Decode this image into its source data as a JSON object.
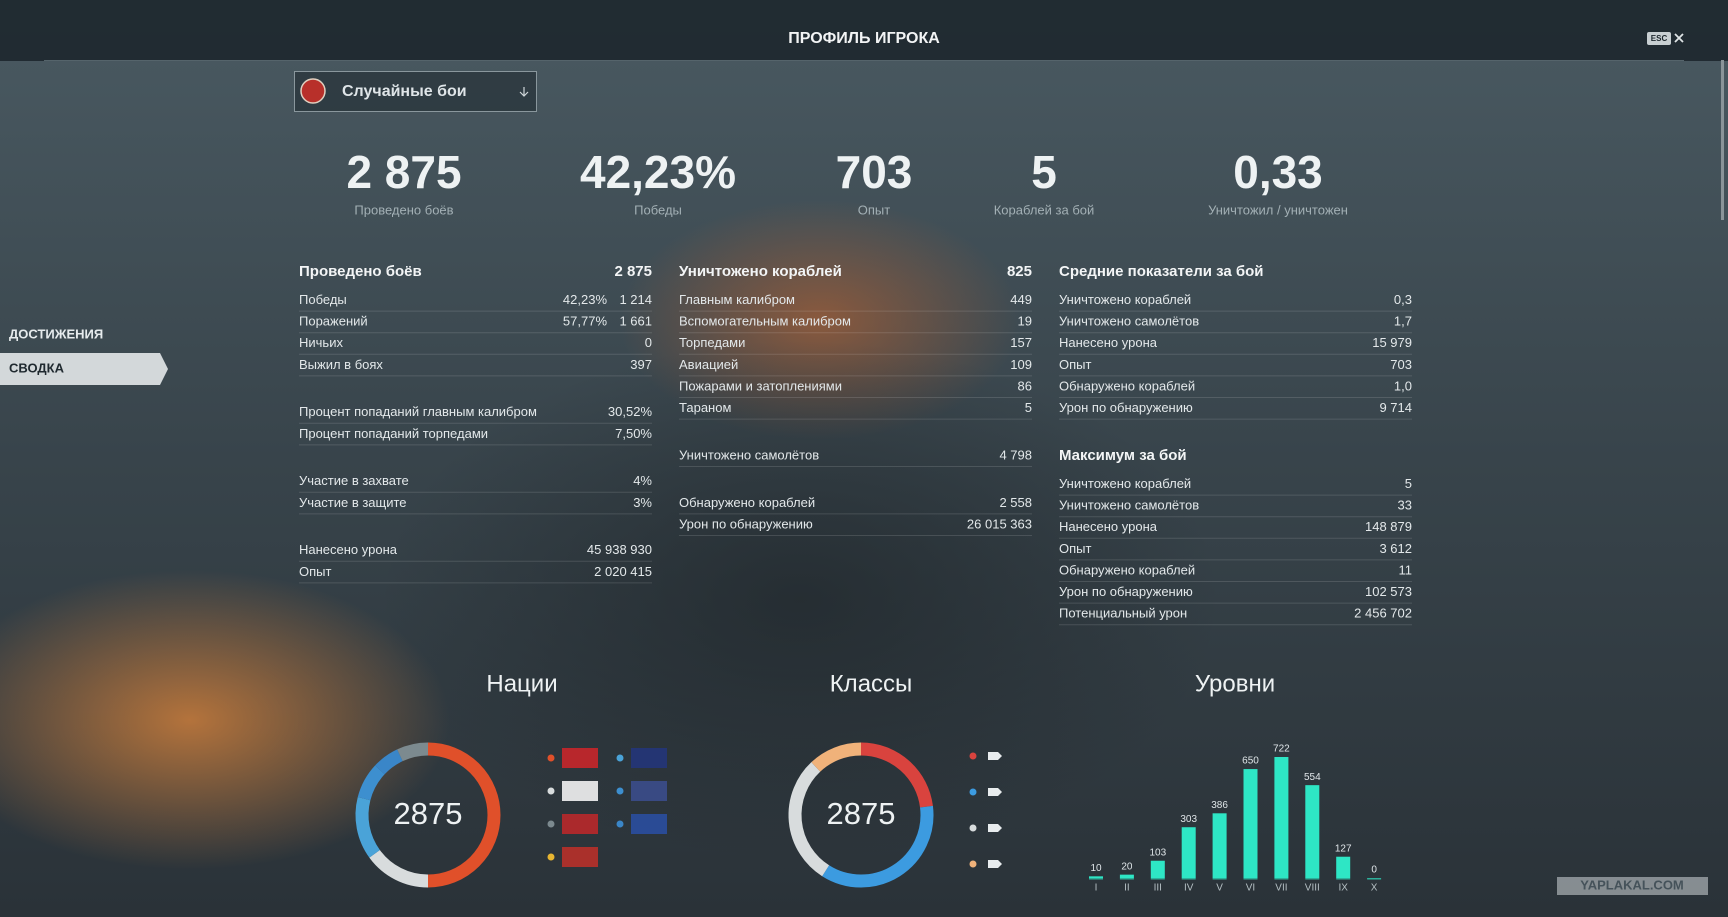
{
  "header": {
    "title": "ПРОФИЛЬ ИГРОКА",
    "esc": "ESC"
  },
  "mode_select": {
    "label": "Случайные бои"
  },
  "sidebar": [
    "ДОСТИЖЕНИЯ",
    "СВОДКА"
  ],
  "summary": [
    {
      "value": "2 875",
      "label": "Проведено боёв"
    },
    {
      "value": "42,23%",
      "label": "Победы"
    },
    {
      "value": "703",
      "label": "Опыт"
    },
    {
      "value": "5",
      "label": "Кораблей за бой"
    },
    {
      "value": "0,33",
      "label": "Уничтожил / уничтожен"
    }
  ],
  "columns": [
    {
      "sections": [
        {
          "title": "Проведено боёв",
          "total": "2 875",
          "groups": [
            [
              {
                "label": "Победы",
                "pct": "42,23%",
                "value": "1 214"
              },
              {
                "label": "Поражений",
                "pct": "57,77%",
                "value": "1 661"
              },
              {
                "label": "Ничьих",
                "value": "0"
              },
              {
                "label": "Выжил в боях",
                "value": "397"
              }
            ],
            [
              {
                "label": "Процент попаданий главным калибром",
                "value": "30,52%"
              },
              {
                "label": "Процент попаданий торпедами",
                "value": "7,50%"
              }
            ],
            [
              {
                "label": "Участие в захвате",
                "value": "4%"
              },
              {
                "label": "Участие в защите",
                "value": "3%"
              }
            ],
            [
              {
                "label": "Нанесено урона",
                "value": "45 938 930"
              },
              {
                "label": "Опыт",
                "value": "2 020 415"
              }
            ]
          ]
        }
      ]
    },
    {
      "sections": [
        {
          "title": "Уничтожено кораблей",
          "total": "825",
          "groups": [
            [
              {
                "label": "Главным калибром",
                "value": "449"
              },
              {
                "label": "Вспомогательным калибром",
                "value": "19"
              },
              {
                "label": "Торпедами",
                "value": "157"
              },
              {
                "label": "Авиацией",
                "value": "109"
              },
              {
                "label": "Пожарами и затоплениями",
                "value": "86"
              },
              {
                "label": "Тараном",
                "value": "5"
              }
            ],
            [
              {
                "label": "Уничтожено самолётов",
                "value": "4 798"
              }
            ],
            [
              {
                "label": "Обнаружено кораблей",
                "value": "2 558"
              },
              {
                "label": "Урон по обнаружению",
                "value": "26 015 363"
              }
            ]
          ]
        }
      ]
    },
    {
      "sections": [
        {
          "title": "Средние показатели за бой",
          "groups": [
            [
              {
                "label": "Уничтожено кораблей",
                "value": "0,3"
              },
              {
                "label": "Уничтожено самолётов",
                "value": "1,7"
              },
              {
                "label": "Нанесено урона",
                "value": "15 979"
              },
              {
                "label": "Опыт",
                "value": "703"
              },
              {
                "label": "Обнаружено кораблей",
                "value": "1,0"
              },
              {
                "label": "Урон по обнаружению",
                "value": "9 714"
              }
            ]
          ]
        },
        {
          "title": "Максимум за бой",
          "groups": [
            [
              {
                "label": "Уничтожено кораблей",
                "value": "5"
              },
              {
                "label": "Уничтожено самолётов",
                "value": "33"
              },
              {
                "label": "Нанесено урона",
                "value": "148 879"
              },
              {
                "label": "Опыт",
                "value": "3 612"
              },
              {
                "label": "Обнаружено кораблей",
                "value": "11"
              },
              {
                "label": "Урон по обнаружению",
                "value": "102 573"
              },
              {
                "label": "Потенциальный урон",
                "value": "2 456 702"
              }
            ]
          ]
        }
      ]
    }
  ],
  "chart_data": [
    {
      "type": "donut",
      "title": "Нации",
      "total": 2875,
      "values": [
        50,
        15,
        14,
        8,
        6,
        7,
        0
      ],
      "colors": [
        "#e0502a",
        "#d8dcdd",
        "#4aa3d8",
        "#3d8fcf",
        "#3a86c8",
        "#7c8a8f",
        "#e7b531"
      ]
    },
    {
      "type": "donut",
      "title": "Классы",
      "total": 2875,
      "values": [
        23,
        36,
        29,
        12
      ],
      "colors": [
        "#d9433e",
        "#3c9be0",
        "#d8dcdd",
        "#f0b27a"
      ]
    },
    {
      "type": "bar",
      "title": "Уровни",
      "categories": [
        "I",
        "II",
        "III",
        "IV",
        "V",
        "VI",
        "VII",
        "VIII",
        "IX",
        "X"
      ],
      "values": [
        10,
        20,
        103,
        303,
        386,
        650,
        722,
        554,
        127,
        0
      ],
      "color": "#2ee6c5"
    }
  ],
  "watermark": "YAPLAKAL.COM"
}
